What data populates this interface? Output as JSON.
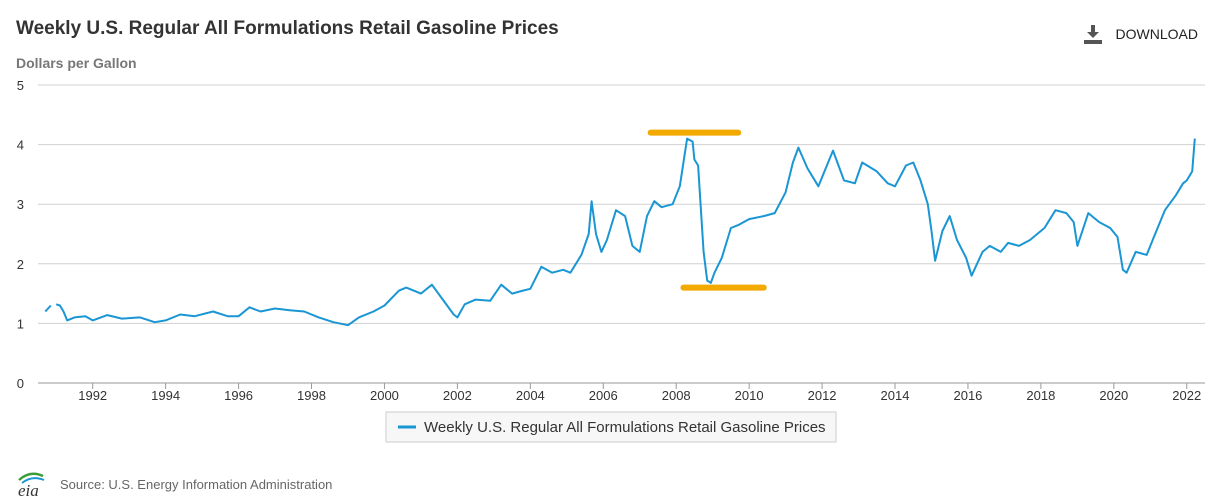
{
  "header": {
    "title": "Weekly U.S. Regular All Formulations Retail Gasoline Prices",
    "units": "Dollars per Gallon",
    "download_label": "DOWNLOAD"
  },
  "footer": {
    "source": "Source: U.S. Energy Information Administration",
    "logo_text": "eia"
  },
  "colors": {
    "series": "#1a96d4",
    "annotation": "#f2a900",
    "grid": "#d0d0d0"
  },
  "chart_data": {
    "type": "line",
    "title": "Weekly U.S. Regular All Formulations Retail Gasoline Prices",
    "ylabel": "Dollars per Gallon",
    "xlim": [
      1990.5,
      2022.5
    ],
    "ylim": [
      0,
      5
    ],
    "yticks": [
      "0",
      "1",
      "2",
      "3",
      "4",
      "5"
    ],
    "xticks": [
      "1992",
      "1994",
      "1996",
      "1998",
      "2000",
      "2002",
      "2004",
      "2006",
      "2008",
      "2010",
      "2012",
      "2014",
      "2016",
      "2018",
      "2020",
      "2022"
    ],
    "grid": true,
    "legend_position": "bottom-center",
    "annotations": [
      {
        "type": "hline-marker",
        "x_start": 2007.3,
        "x_end": 2009.7,
        "y": 4.2
      },
      {
        "type": "hline-marker",
        "x_start": 2008.2,
        "x_end": 2010.4,
        "y": 1.6
      }
    ],
    "series": [
      {
        "name": "Weekly U.S. Regular All Formulations Retail Gasoline Prices",
        "x": [
          1990.7,
          1990.85,
          1991.0,
          1991.1,
          1991.2,
          1991.3,
          1991.5,
          1991.8,
          1992.0,
          1992.4,
          1992.8,
          1993.3,
          1993.7,
          1994.0,
          1994.4,
          1994.8,
          1995.3,
          1995.7,
          1996.0,
          1996.3,
          1996.6,
          1997.0,
          1997.4,
          1997.8,
          1998.2,
          1998.6,
          1999.0,
          1999.3,
          1999.7,
          2000.0,
          2000.4,
          2000.6,
          2001.0,
          2001.3,
          2001.6,
          2001.9,
          2002.0,
          2002.2,
          2002.5,
          2002.9,
          2003.2,
          2003.5,
          2003.8,
          2004.0,
          2004.3,
          2004.6,
          2004.9,
          2005.1,
          2005.4,
          2005.6,
          2005.68,
          2005.8,
          2005.95,
          2006.1,
          2006.35,
          2006.6,
          2006.8,
          2007.0,
          2007.2,
          2007.4,
          2007.6,
          2007.9,
          2008.1,
          2008.3,
          2008.45,
          2008.5,
          2008.6,
          2008.75,
          2008.85,
          2008.95,
          2009.05,
          2009.25,
          2009.5,
          2009.7,
          2010.0,
          2010.4,
          2010.7,
          2011.0,
          2011.2,
          2011.35,
          2011.6,
          2011.9,
          2012.1,
          2012.3,
          2012.6,
          2012.9,
          2013.1,
          2013.5,
          2013.8,
          2014.0,
          2014.3,
          2014.5,
          2014.7,
          2014.9,
          2015.0,
          2015.1,
          2015.3,
          2015.5,
          2015.7,
          2015.95,
          2016.1,
          2016.4,
          2016.6,
          2016.9,
          2017.1,
          2017.4,
          2017.7,
          2017.9,
          2018.1,
          2018.4,
          2018.7,
          2018.9,
          2019.0,
          2019.3,
          2019.6,
          2019.9,
          2020.1,
          2020.25,
          2020.35,
          2020.6,
          2020.9,
          2021.1,
          2021.4,
          2021.7,
          2021.9,
          2022.0,
          2022.15,
          2022.22
        ],
        "y": [
          1.2,
          1.3,
          1.32,
          1.3,
          1.2,
          1.05,
          1.1,
          1.12,
          1.05,
          1.14,
          1.08,
          1.1,
          1.02,
          1.05,
          1.15,
          1.12,
          1.2,
          1.12,
          1.12,
          1.27,
          1.2,
          1.25,
          1.22,
          1.2,
          1.1,
          1.02,
          0.97,
          1.1,
          1.2,
          1.3,
          1.55,
          1.6,
          1.5,
          1.65,
          1.4,
          1.15,
          1.1,
          1.32,
          1.4,
          1.38,
          1.65,
          1.5,
          1.55,
          1.58,
          1.95,
          1.85,
          1.9,
          1.85,
          2.15,
          2.5,
          3.05,
          2.5,
          2.2,
          2.4,
          2.9,
          2.8,
          2.3,
          2.2,
          2.8,
          3.05,
          2.95,
          3.0,
          3.3,
          4.1,
          4.05,
          3.75,
          3.65,
          2.2,
          1.72,
          1.68,
          1.85,
          2.1,
          2.6,
          2.65,
          2.75,
          2.8,
          2.85,
          3.2,
          3.7,
          3.95,
          3.6,
          3.3,
          3.6,
          3.9,
          3.4,
          3.35,
          3.7,
          3.55,
          3.35,
          3.3,
          3.65,
          3.7,
          3.4,
          3.0,
          2.55,
          2.05,
          2.55,
          2.8,
          2.4,
          2.1,
          1.8,
          2.2,
          2.3,
          2.2,
          2.35,
          2.3,
          2.4,
          2.5,
          2.6,
          2.9,
          2.85,
          2.7,
          2.3,
          2.85,
          2.7,
          2.6,
          2.45,
          1.9,
          1.85,
          2.2,
          2.15,
          2.45,
          2.9,
          3.15,
          3.35,
          3.4,
          3.55,
          4.1
        ]
      }
    ]
  }
}
